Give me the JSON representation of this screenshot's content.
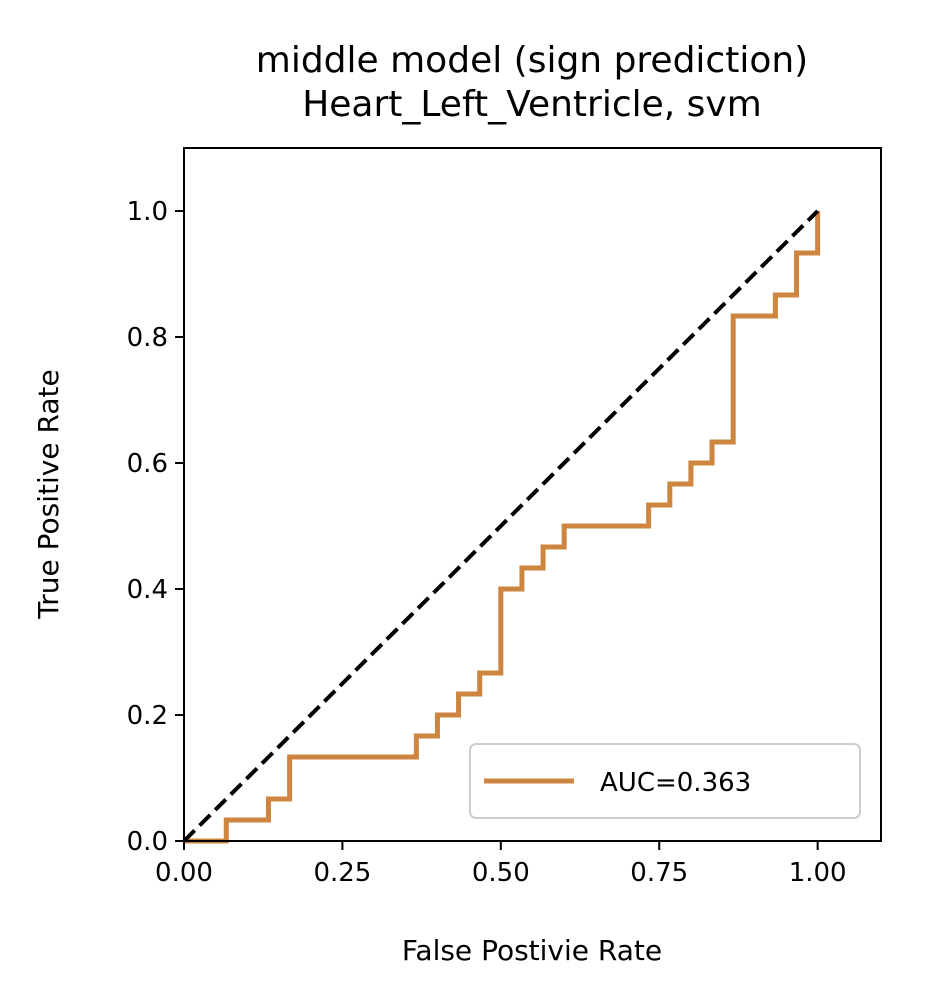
{
  "chart_data": {
    "type": "line",
    "title": "middle model (sign prediction)",
    "subtitle": "Heart_Left_Ventricle, svm",
    "xlabel": "False Postivie Rate",
    "ylabel": "True Positive Rate",
    "xlim": [
      0.0,
      1.1
    ],
    "ylim": [
      0.0,
      1.1
    ],
    "xticks": [
      0.0,
      0.25,
      0.5,
      0.75,
      1.0
    ],
    "xtick_labels": [
      "0.00",
      "0.25",
      "0.50",
      "0.75",
      "1.00"
    ],
    "yticks": [
      0.0,
      0.2,
      0.4,
      0.6,
      0.8,
      1.0
    ],
    "ytick_labels": [
      "0.0",
      "0.2",
      "0.4",
      "0.6",
      "0.8",
      "1.0"
    ],
    "grid": false,
    "legend_position": "lower-right",
    "series": [
      {
        "name": "AUC=0.363",
        "color": "#cd853f",
        "style": "step",
        "x": [
          0.0,
          0.0667,
          0.0667,
          0.1333,
          0.1333,
          0.1667,
          0.1667,
          0.3667,
          0.3667,
          0.4,
          0.4,
          0.4333,
          0.4333,
          0.4667,
          0.4667,
          0.5,
          0.5,
          0.5333,
          0.5333,
          0.5667,
          0.5667,
          0.6,
          0.6,
          0.7333,
          0.7333,
          0.7667,
          0.7667,
          0.8,
          0.8,
          0.8333,
          0.8333,
          0.8667,
          0.8667,
          0.9333,
          0.9333,
          0.9667,
          0.9667,
          1.0,
          1.0
        ],
        "y": [
          0.0,
          0.0,
          0.0333,
          0.0333,
          0.0667,
          0.0667,
          0.1333,
          0.1333,
          0.1667,
          0.1667,
          0.2,
          0.2,
          0.2333,
          0.2333,
          0.2667,
          0.2667,
          0.4,
          0.4,
          0.4333,
          0.4333,
          0.4667,
          0.4667,
          0.5,
          0.5,
          0.5333,
          0.5333,
          0.5667,
          0.5667,
          0.6,
          0.6,
          0.6333,
          0.6333,
          0.8333,
          0.8333,
          0.8667,
          0.8667,
          0.9333,
          0.9333,
          1.0
        ]
      },
      {
        "color": "#000000",
        "style": "dashed",
        "x": [
          0.0,
          1.0
        ],
        "y": [
          0.0,
          1.0
        ]
      }
    ]
  }
}
